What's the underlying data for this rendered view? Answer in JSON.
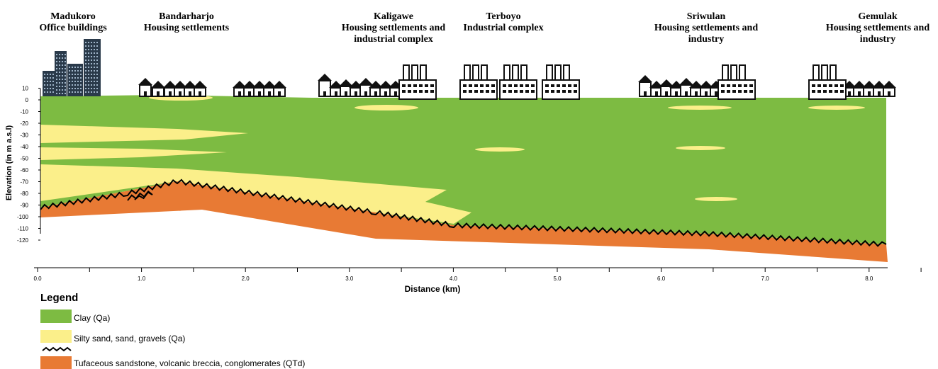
{
  "locations": [
    {
      "lines": [
        "Madukoro",
        "Office buildings"
      ]
    },
    {
      "lines": [
        "Bandarharjo",
        "Housing settlements"
      ]
    },
    {
      "lines": [
        "Kaligawe",
        "Housing settlements and",
        "industrial complex"
      ]
    },
    {
      "lines": [
        "Terboyo",
        "Industrial complex"
      ]
    },
    {
      "lines": [
        "Sriwulan",
        "Housing settlements and",
        "industry"
      ]
    },
    {
      "lines": [
        "Gemulak",
        "Housing settlements and",
        "industry"
      ]
    }
  ],
  "axes": {
    "y_label": "Elevation (in m a.s.l)",
    "yticks": [
      10,
      0,
      -10,
      -20,
      -30,
      -40,
      -50,
      -60,
      -70,
      -80,
      -90,
      -100,
      -110,
      -120
    ],
    "x_label": "Distance (km)",
    "xticks": [
      {
        "value": 0,
        "label": "0.0"
      },
      {
        "value": 1,
        "label": "1.0"
      },
      {
        "value": 2,
        "label": "2.0"
      },
      {
        "value": 3,
        "label": "3.0"
      },
      {
        "value": 4,
        "label": "4.0"
      },
      {
        "value": 5,
        "label": "5.0"
      },
      {
        "value": 6,
        "label": "6.0"
      },
      {
        "value": 7,
        "label": "7.0"
      },
      {
        "value": 8,
        "label": "8.0"
      }
    ]
  },
  "legend": {
    "title": "Legend",
    "items": [
      "Clay (Qa)",
      "Silty sand, sand, gravels (Qa)",
      "Tufaceous sandstone, volcanic breccia, conglomerates (QTd)"
    ]
  }
}
